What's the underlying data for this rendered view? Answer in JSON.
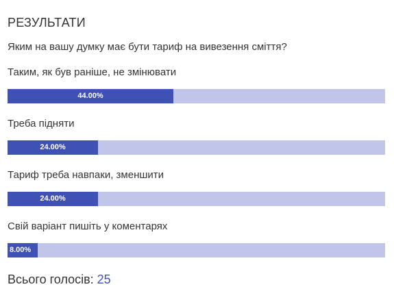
{
  "poll": {
    "heading": "РЕЗУЛЬТАТИ",
    "question": "Яким на вашу думку має бути тариф на вивезення сміття?",
    "options": [
      {
        "label": "Таким, як був раніше, не змінювати",
        "percent_label": "44.00%",
        "fraction": 0.44
      },
      {
        "label": "Треба підняти",
        "percent_label": "24.00%",
        "fraction": 0.24
      },
      {
        "label": "Тариф треба навпаки, зменшити",
        "percent_label": "24.00%",
        "fraction": 0.24
      },
      {
        "label": "Свій варіант пишіть у коментарях",
        "percent_label": "8.00%",
        "fraction": 0.08
      }
    ],
    "total_label": "Всього голосів:",
    "total_count": "25",
    "colors": {
      "bar_fill": "#3f51b5",
      "bar_track": "#c1c5ea",
      "count_accent": "#3f51b5"
    }
  }
}
